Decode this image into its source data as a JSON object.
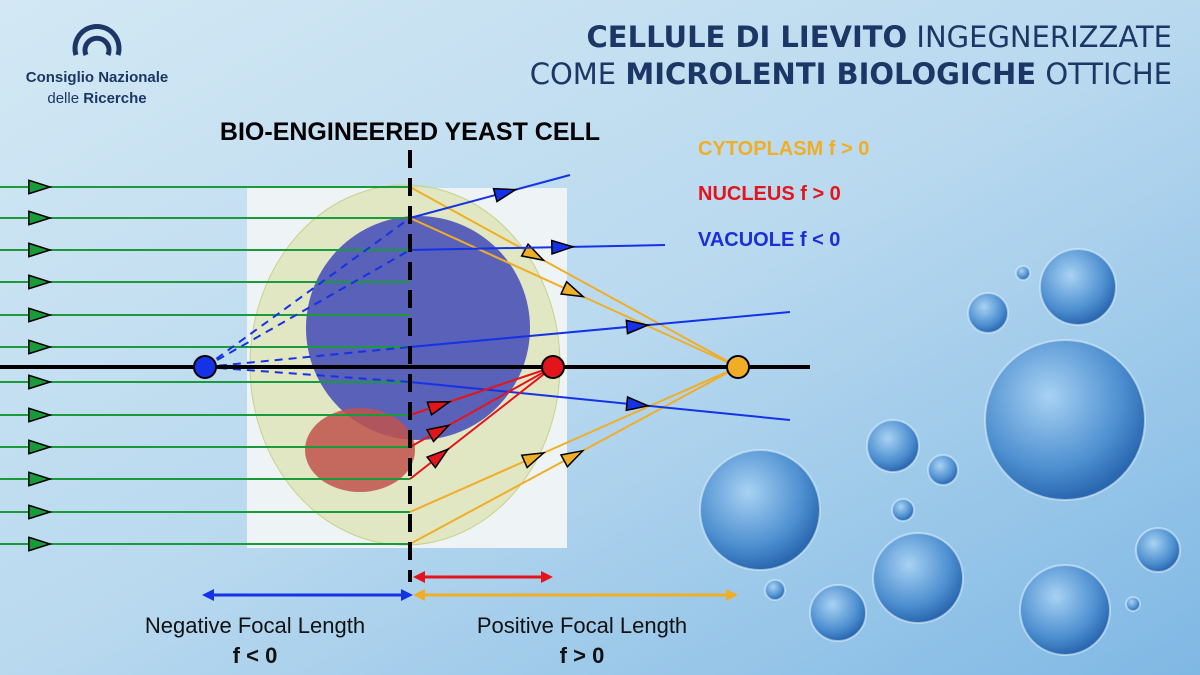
{
  "logo": {
    "line1": "Consiglio Nazionale",
    "line2_regular": "delle",
    "line2_bold": "Ricerche"
  },
  "title": {
    "line1_bold": "CELLULE DI LIEVITO",
    "line1_regular": "INGEGNERIZZATE",
    "line2_regular_a": "COME",
    "line2_bold": "MICROLENTI BIOLOGICHE",
    "line2_regular_b": "OTTICHE"
  },
  "diagram": {
    "heading": "BIO-ENGINEERED YEAST CELL",
    "legend": [
      "CYTOPLASM f > 0",
      "NUCLEUS f > 0",
      "VACUOLE f < 0"
    ],
    "negative": {
      "label": "Negative Focal Length",
      "formula": "f < 0"
    },
    "positive": {
      "label": "Positive Focal Length",
      "formula": "f > 0"
    }
  }
}
